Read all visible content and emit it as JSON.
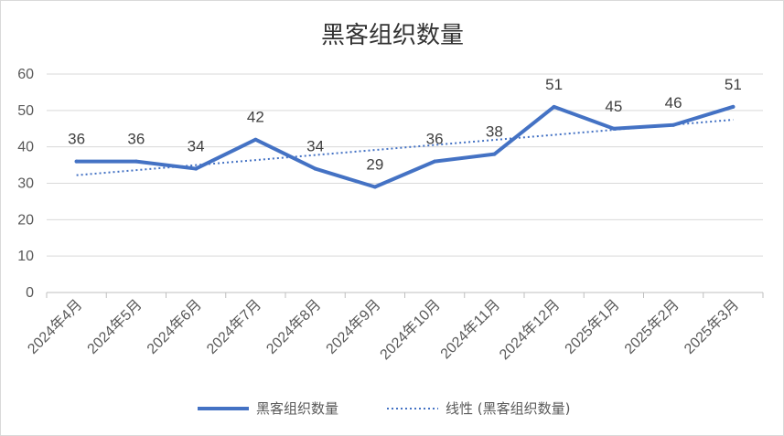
{
  "chart_data": {
    "type": "line",
    "title": "黑客组织数量",
    "categories": [
      "2024年4月",
      "2024年5月",
      "2024年6月",
      "2024年7月",
      "2024年8月",
      "2024年9月",
      "2024年10月",
      "2024年11月",
      "2024年12月",
      "2025年1月",
      "2025年2月",
      "2025年3月"
    ],
    "series": [
      {
        "name": "黑客组织数量",
        "values": [
          36,
          36,
          34,
          42,
          34,
          29,
          36,
          38,
          51,
          45,
          46,
          51
        ],
        "color": "#4472c4",
        "data_labels": true
      }
    ],
    "trendline": {
      "name": "线性 (黑客组织数量)",
      "type": "linear",
      "color": "#4472c4",
      "style": "dotted"
    },
    "y_ticks": [
      0,
      10,
      20,
      30,
      40,
      50,
      60
    ],
    "ylim": [
      0,
      60
    ],
    "grid": true,
    "legend_position": "bottom"
  }
}
